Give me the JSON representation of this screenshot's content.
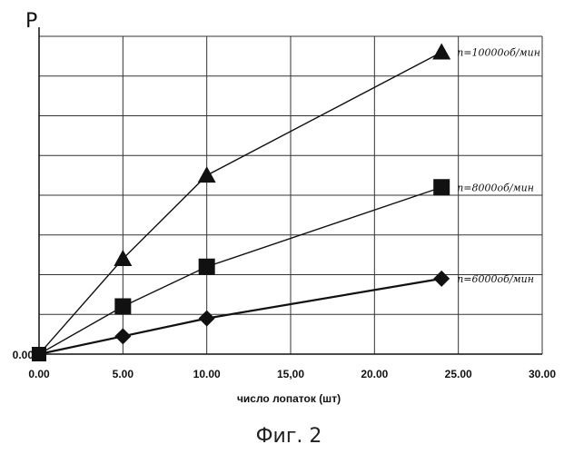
{
  "chart_data": {
    "type": "line",
    "ylabel": "P",
    "xlabel": "число лопаток (шт)",
    "caption": "Фиг. 2",
    "xlim": [
      0,
      30
    ],
    "ylim": [
      0,
      8
    ],
    "x_ticks": [
      "0.00",
      "5.00",
      "10.00",
      "15,00",
      "20.00",
      "25.00",
      "30.00"
    ],
    "y_ticks": [
      "0.00"
    ],
    "grid": "horizontal",
    "series": [
      {
        "name": "n=10000об/мин",
        "marker": "triangle",
        "x": [
          0,
          5,
          10,
          24
        ],
        "y": [
          0,
          2.4,
          4.5,
          7.6
        ]
      },
      {
        "name": "n=8000об/мин",
        "marker": "square",
        "x": [
          0,
          5,
          10,
          24
        ],
        "y": [
          0,
          1.2,
          2.2,
          4.2
        ]
      },
      {
        "name": "n=6000об/мин",
        "marker": "diamond",
        "x": [
          0,
          5,
          10,
          24
        ],
        "y": [
          0,
          0.45,
          0.9,
          1.9
        ]
      }
    ]
  }
}
